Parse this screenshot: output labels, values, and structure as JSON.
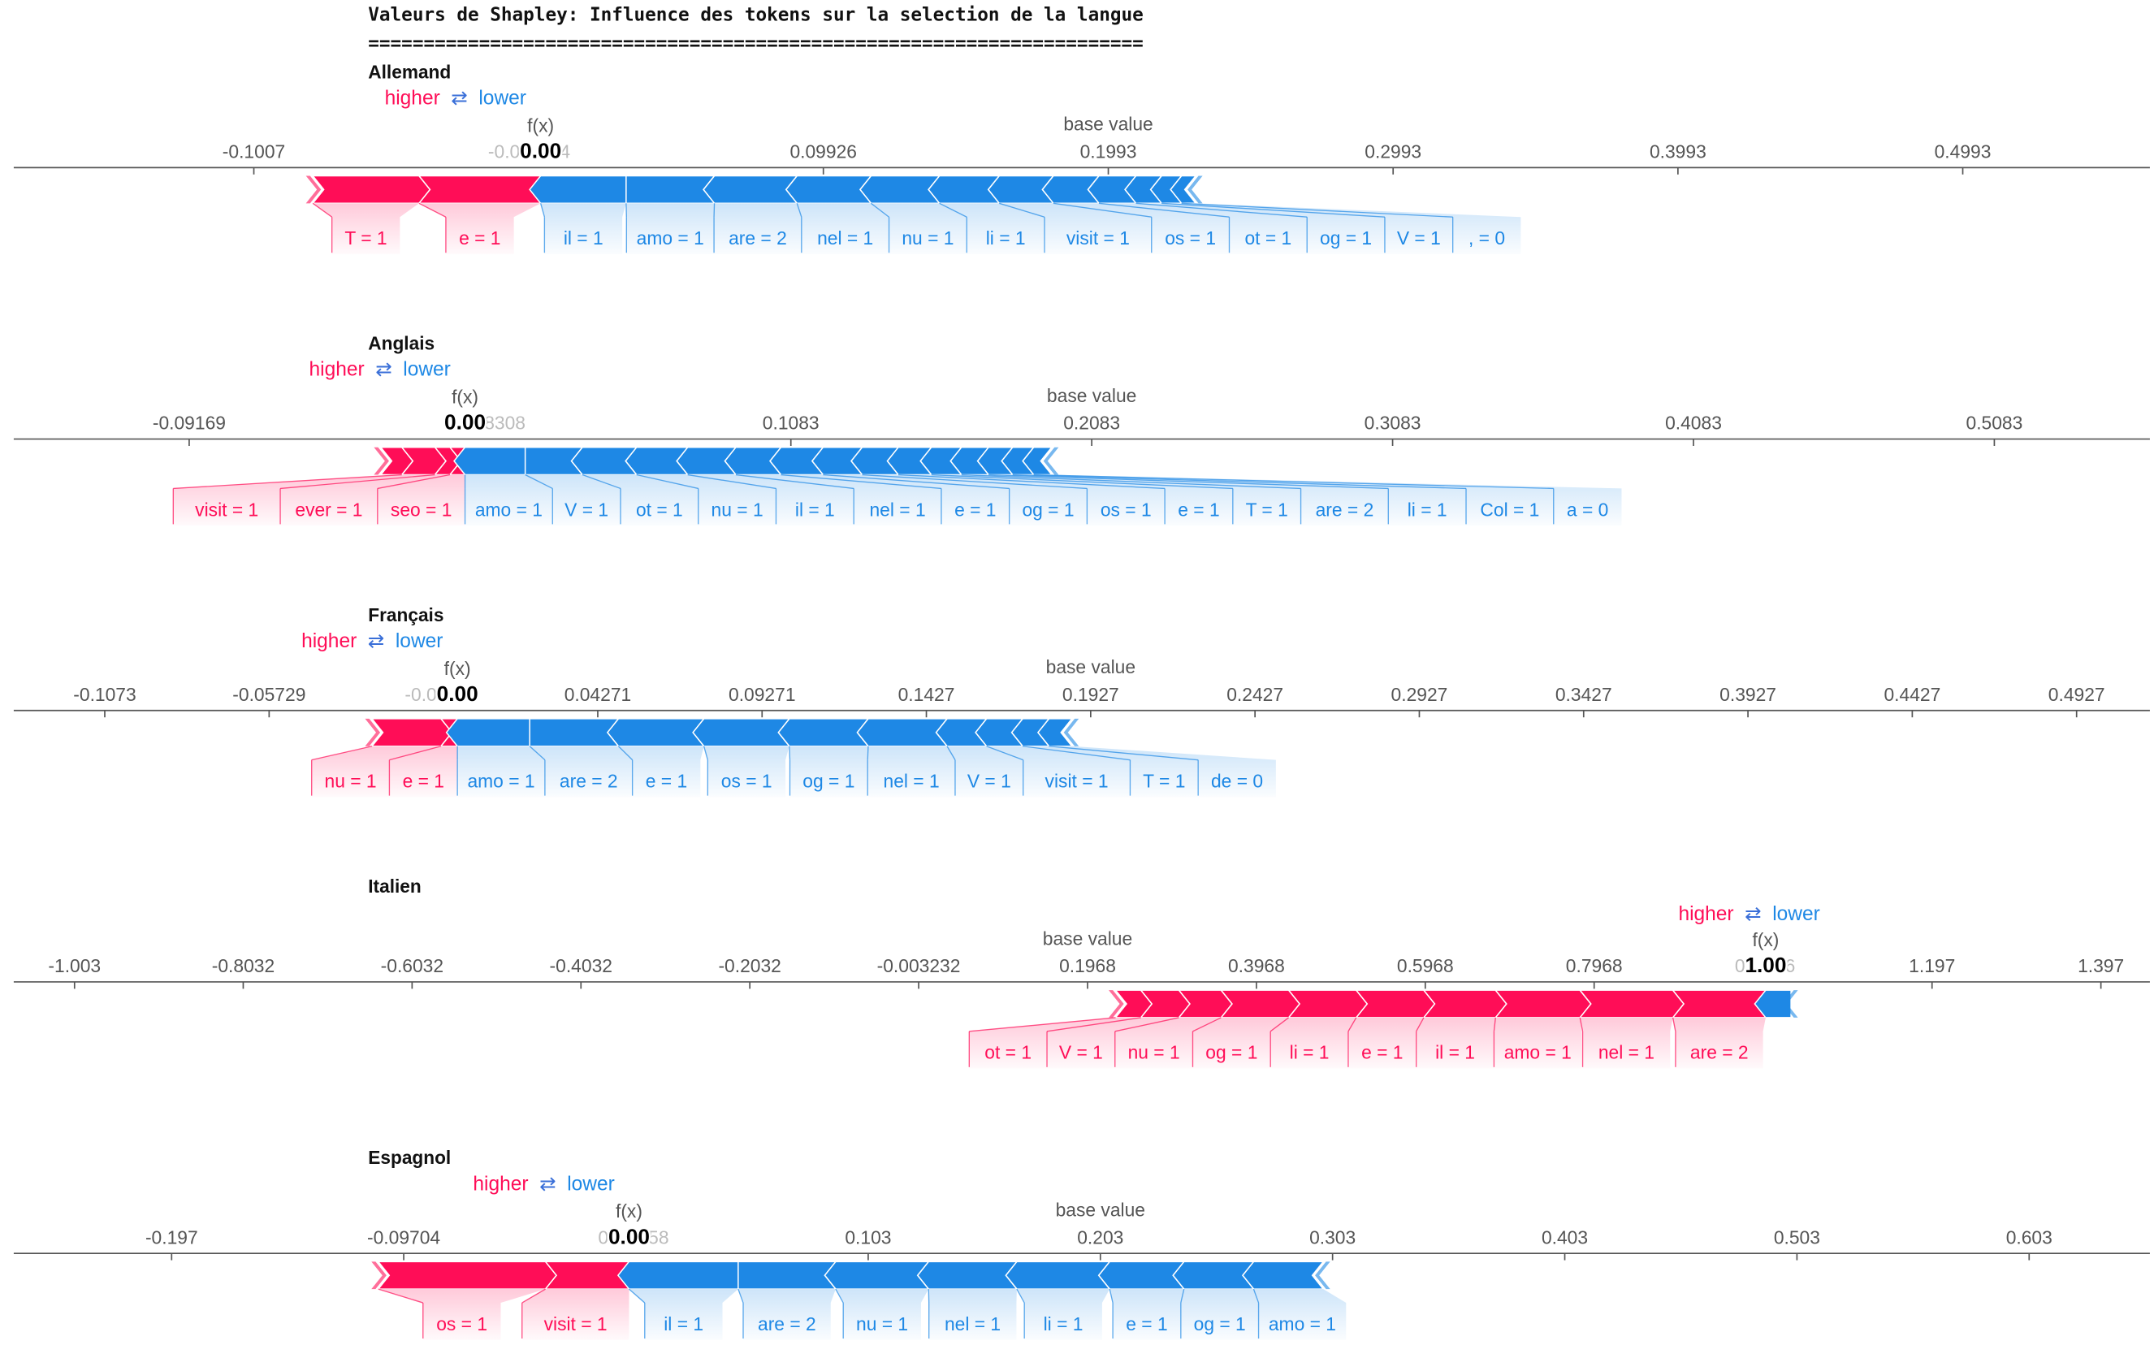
{
  "header": {
    "title": "Valeurs de Shapley: Influence des tokens sur la selection de la langue",
    "separator": "======================================================================"
  },
  "legend": {
    "higher": "higher",
    "arrow": "⇄",
    "lower": "lower",
    "fx_label": "f(x)",
    "base_label": "base value"
  },
  "colors": {
    "positive": "#ff0d57",
    "negative": "#1e88e5",
    "axis": "#555555",
    "tick_text": "#555555"
  },
  "chart_data": [
    {
      "type": "force",
      "name": "Allemand",
      "fx": 0.0,
      "fx_display": "0.00",
      "base_value": 0.1993,
      "xlim": [
        -0.185,
        0.565
      ],
      "ticks": [
        -0.1007,
        0.09926,
        0.1993,
        0.2993,
        0.3993,
        0.4993
      ],
      "tick_labels": [
        "-0.1007",
        "0.09926",
        "0.1993",
        "0.2993",
        "0.3993",
        "0.4993"
      ],
      "faded_tick_labels": [
        "-0.0",
        "4"
      ],
      "positive_features": [
        {
          "label": "e = 1",
          "value": -0.0427
        },
        {
          "label": "T = 1",
          "value": -0.0373
        }
      ],
      "negative_features": [
        {
          "label": "il = 1",
          "value": 0.03
        },
        {
          "label": "amo = 1",
          "value": 0.031
        },
        {
          "label": "are = 2",
          "value": 0.029
        },
        {
          "label": "nel = 1",
          "value": 0.026
        },
        {
          "label": "nu = 1",
          "value": 0.024
        },
        {
          "label": "li = 1",
          "value": 0.021
        },
        {
          "label": "visit = 1",
          "value": 0.019
        },
        {
          "label": "os = 1",
          "value": 0.016
        },
        {
          "label": "ot = 1",
          "value": 0.013
        },
        {
          "label": "og = 1",
          "value": 0.009
        },
        {
          "label": "V = 1",
          "value": 0.007
        },
        {
          "label": ", = 0",
          "value": 0.005
        }
      ]
    },
    {
      "type": "force",
      "name": "Anglais",
      "fx": 0.0,
      "fx_display": "0.00",
      "base_value": 0.2083,
      "xlim": [
        -0.15,
        0.56
      ],
      "ticks": [
        -0.09169,
        0.1083,
        0.2083,
        0.3083,
        0.4083,
        0.5083
      ],
      "tick_labels": [
        "-0.09169",
        "0.1083",
        "0.2083",
        "0.3083",
        "0.4083",
        "0.5083"
      ],
      "faded_tick_labels": [
        "8308"
      ],
      "positive_features": [
        {
          "label": "seo = 1",
          "value": -0.005
        },
        {
          "label": "ever = 1",
          "value": -0.005
        },
        {
          "label": "visit = 1",
          "value": -0.011
        },
        {
          "label": "",
          "value": -0.007
        }
      ],
      "negative_features": [
        {
          "label": "amo = 1",
          "value": 0.02
        },
        {
          "label": "V = 1",
          "value": 0.019
        },
        {
          "label": "ot = 1",
          "value": 0.018
        },
        {
          "label": "nu = 1",
          "value": 0.017
        },
        {
          "label": "il = 1",
          "value": 0.016
        },
        {
          "label": "nel = 1",
          "value": 0.015
        },
        {
          "label": "e = 1",
          "value": 0.014
        },
        {
          "label": "og = 1",
          "value": 0.013
        },
        {
          "label": "os = 1",
          "value": 0.012
        },
        {
          "label": "e = 1",
          "value": 0.011
        },
        {
          "label": "T = 1",
          "value": 0.01
        },
        {
          "label": "are = 2",
          "value": 0.009
        },
        {
          "label": "li = 1",
          "value": 0.008
        },
        {
          "label": "Col = 1",
          "value": 0.007
        },
        {
          "label": "a = 0",
          "value": 0.006
        }
      ]
    },
    {
      "type": "force",
      "name": "Français",
      "fx": 0.0,
      "fx_display": "0.00",
      "base_value": 0.1927,
      "xlim": [
        -0.135,
        0.515
      ],
      "ticks": [
        -0.1073,
        -0.05729,
        0.04271,
        0.09271,
        0.1427,
        0.1927,
        0.2427,
        0.2927,
        0.3427,
        0.3927,
        0.4427,
        0.4927
      ],
      "tick_labels": [
        "-0.1073",
        "-0.05729",
        "0.04271",
        "0.09271",
        "0.1427",
        "0.1927",
        "0.2427",
        "0.2927",
        "0.3427",
        "0.3927",
        "0.4427",
        "0.4927"
      ],
      "faded_tick_labels": [
        "-0.0"
      ],
      "positive_features": [
        {
          "label": "e = 1",
          "value": -0.005
        },
        {
          "label": "nu = 1",
          "value": -0.021
        }
      ],
      "negative_features": [
        {
          "label": "amo = 1",
          "value": 0.022
        },
        {
          "label": "are = 2",
          "value": 0.027
        },
        {
          "label": "e = 1",
          "value": 0.026
        },
        {
          "label": "os = 1",
          "value": 0.026
        },
        {
          "label": "og = 1",
          "value": 0.024
        },
        {
          "label": "nel = 1",
          "value": 0.024
        },
        {
          "label": "V = 1",
          "value": 0.012
        },
        {
          "label": "visit = 1",
          "value": 0.011
        },
        {
          "label": "T = 1",
          "value": 0.008
        },
        {
          "label": "de = 0",
          "value": 0.007
        }
      ]
    },
    {
      "type": "force",
      "name": "Italien",
      "fx": 1.0,
      "fx_display": "1.00",
      "base_value": 0.1968,
      "xlim": [
        -1.075,
        1.455
      ],
      "ticks": [
        -1.003,
        -0.8032,
        -0.6032,
        -0.4032,
        -0.2032,
        -0.003232,
        0.1968,
        0.3968,
        0.5968,
        0.7968,
        1.197,
        1.397
      ],
      "tick_labels": [
        "-1.003",
        "-0.8032",
        "-0.6032",
        "-0.4032",
        "-0.2032",
        "-0.003232",
        "0.1968",
        "0.3968",
        "0.5968",
        "0.7968",
        "1.197",
        "1.397"
      ],
      "faded_tick_labels": [
        "0",
        "6"
      ],
      "positive_features": [
        {
          "label": "ot = 1",
          "value": 0.03
        },
        {
          "label": "V = 1",
          "value": 0.045
        },
        {
          "label": "nu = 1",
          "value": 0.05
        },
        {
          "label": "og = 1",
          "value": 0.08
        },
        {
          "label": "li = 1",
          "value": 0.08
        },
        {
          "label": "e = 1",
          "value": 0.08
        },
        {
          "label": "il = 1",
          "value": 0.085
        },
        {
          "label": "amo = 1",
          "value": 0.1
        },
        {
          "label": "nel = 1",
          "value": 0.11
        },
        {
          "label": "are = 2",
          "value": 0.11
        }
      ],
      "negative_features": []
    },
    {
      "type": "force",
      "name": "Espagnol",
      "fx": 0.0,
      "fx_display": "0.00",
      "base_value": 0.203,
      "xlim": [
        -0.265,
        0.655
      ],
      "ticks": [
        -0.197,
        -0.09704,
        0.103,
        0.203,
        0.303,
        0.403,
        0.503,
        0.603
      ],
      "tick_labels": [
        "-0.197",
        "-0.09704",
        "0.103",
        "0.203",
        "0.303",
        "0.403",
        "0.503",
        "0.603"
      ],
      "faded_tick_labels": [
        "0",
        "58"
      ],
      "positive_features": [
        {
          "label": "visit = 1",
          "value": -0.036
        },
        {
          "label": "os = 1",
          "value": -0.072
        }
      ],
      "negative_features": [
        {
          "label": "il = 1",
          "value": 0.047
        },
        {
          "label": "are = 2",
          "value": 0.042
        },
        {
          "label": "nu = 1",
          "value": 0.04
        },
        {
          "label": "nel = 1",
          "value": 0.038
        },
        {
          "label": "li = 1",
          "value": 0.04
        },
        {
          "label": "e = 1",
          "value": 0.032
        },
        {
          "label": "og = 1",
          "value": 0.03
        },
        {
          "label": "amo = 1",
          "value": 0.03
        }
      ]
    }
  ]
}
